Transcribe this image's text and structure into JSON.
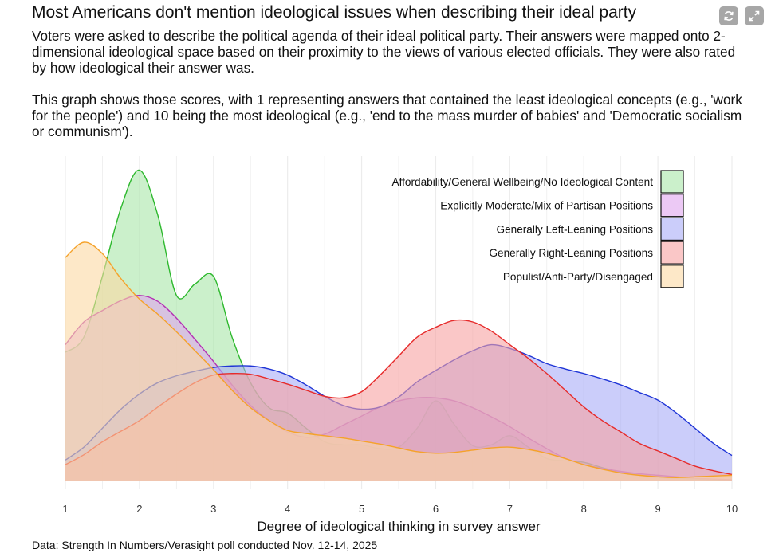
{
  "title": "Most Americans don't mention ideological issues when describing their ideal party",
  "subtitle": {
    "paragraph1": "Voters were asked to describe the political agenda of their ideal political party. Their answers were mapped onto 2-dimensional ideological space based on their proximity to the views of various elected officials. They were also rated by how ideological their answer was.",
    "paragraph2": "This graph shows those scores, with 1 representing answers that contained the least ideological concepts (e.g., 'work for the people') and 10 being the most ideological (e.g., 'end to the mass murder of babies' and 'Democratic socialism or communism')."
  },
  "footer": "Data: Strength In Numbers/Verasight poll conducted Nov. 12-14, 2025",
  "icons": {
    "refresh": "refresh-icon",
    "expand": "expand-icon"
  },
  "chart_data": {
    "type": "area",
    "subtype": "density",
    "xlabel": "Degree of ideological thinking in survey answer",
    "ylabel": "",
    "xlim": [
      1,
      10
    ],
    "ylim": [
      0,
      0.42
    ],
    "x_ticks": [
      1,
      2,
      3,
      4,
      5,
      6,
      7,
      8,
      9,
      10
    ],
    "grid": true,
    "legend_position": "top-right",
    "x": [
      1,
      1.25,
      1.5,
      1.75,
      2,
      2.25,
      2.5,
      2.75,
      3,
      3.25,
      3.5,
      3.75,
      4,
      4.25,
      4.5,
      4.75,
      5,
      5.25,
      5.5,
      5.75,
      6,
      6.25,
      6.5,
      6.75,
      7,
      7.25,
      7.5,
      7.75,
      8,
      8.25,
      8.5,
      8.75,
      9,
      9.25,
      9.5,
      9.75,
      10
    ],
    "series": [
      {
        "name": "Affordability/General Wellbeing/No Ideological Content",
        "color": "#2db82d",
        "fill": "#a8e6a8",
        "values": [
          0.17,
          0.19,
          0.27,
          0.36,
          0.41,
          0.35,
          0.245,
          0.26,
          0.27,
          0.19,
          0.13,
          0.097,
          0.09,
          0.07,
          0.052,
          0.048,
          0.048,
          0.043,
          0.045,
          0.07,
          0.106,
          0.075,
          0.047,
          0.048,
          0.06,
          0.045,
          0.03,
          0.027,
          0.025,
          0.018,
          0.012,
          0.008,
          0.005,
          0.004,
          0.003,
          0.002,
          0.001
        ]
      },
      {
        "name": "Explicitly Moderate/Mix of Partisan Positions",
        "color": "#b431b4",
        "fill": "#dfa5ef",
        "values": [
          0.18,
          0.21,
          0.225,
          0.238,
          0.245,
          0.237,
          0.215,
          0.187,
          0.158,
          0.127,
          0.1,
          0.08,
          0.065,
          0.058,
          0.062,
          0.074,
          0.086,
          0.098,
          0.106,
          0.11,
          0.11,
          0.106,
          0.097,
          0.085,
          0.072,
          0.057,
          0.043,
          0.03,
          0.022,
          0.017,
          0.013,
          0.01,
          0.008,
          0.006,
          0.004,
          0.003,
          0.002
        ]
      },
      {
        "name": "Generally Left-Leaning Positions",
        "color": "#1f35d6",
        "fill": "#a8acf6",
        "values": [
          0.028,
          0.045,
          0.07,
          0.095,
          0.115,
          0.13,
          0.139,
          0.145,
          0.15,
          0.152,
          0.152,
          0.148,
          0.14,
          0.127,
          0.112,
          0.1,
          0.095,
          0.098,
          0.111,
          0.131,
          0.146,
          0.16,
          0.172,
          0.18,
          0.175,
          0.166,
          0.155,
          0.148,
          0.142,
          0.135,
          0.127,
          0.117,
          0.107,
          0.09,
          0.07,
          0.05,
          0.034
        ]
      },
      {
        "name": "Generally Right-Leaning Positions",
        "color": "#e62b2b",
        "fill": "#f6a1a1",
        "values": [
          0.022,
          0.035,
          0.052,
          0.066,
          0.08,
          0.098,
          0.115,
          0.13,
          0.14,
          0.142,
          0.141,
          0.135,
          0.128,
          0.12,
          0.112,
          0.11,
          0.118,
          0.14,
          0.165,
          0.19,
          0.203,
          0.212,
          0.21,
          0.198,
          0.18,
          0.162,
          0.142,
          0.12,
          0.098,
          0.08,
          0.065,
          0.05,
          0.04,
          0.03,
          0.02,
          0.014,
          0.009
        ]
      },
      {
        "name": "Populist/Anti-Party/Disengaged",
        "color": "#f5a22a",
        "fill": "#fbd9a3",
        "values": [
          0.295,
          0.315,
          0.3,
          0.267,
          0.24,
          0.22,
          0.197,
          0.172,
          0.147,
          0.12,
          0.097,
          0.08,
          0.067,
          0.063,
          0.06,
          0.057,
          0.053,
          0.049,
          0.044,
          0.039,
          0.037,
          0.038,
          0.041,
          0.044,
          0.045,
          0.042,
          0.037,
          0.03,
          0.022,
          0.016,
          0.011,
          0.008,
          0.006,
          0.005,
          0.006,
          0.007,
          0.008
        ]
      }
    ],
    "legend_order": [
      0,
      1,
      2,
      3,
      4
    ]
  }
}
